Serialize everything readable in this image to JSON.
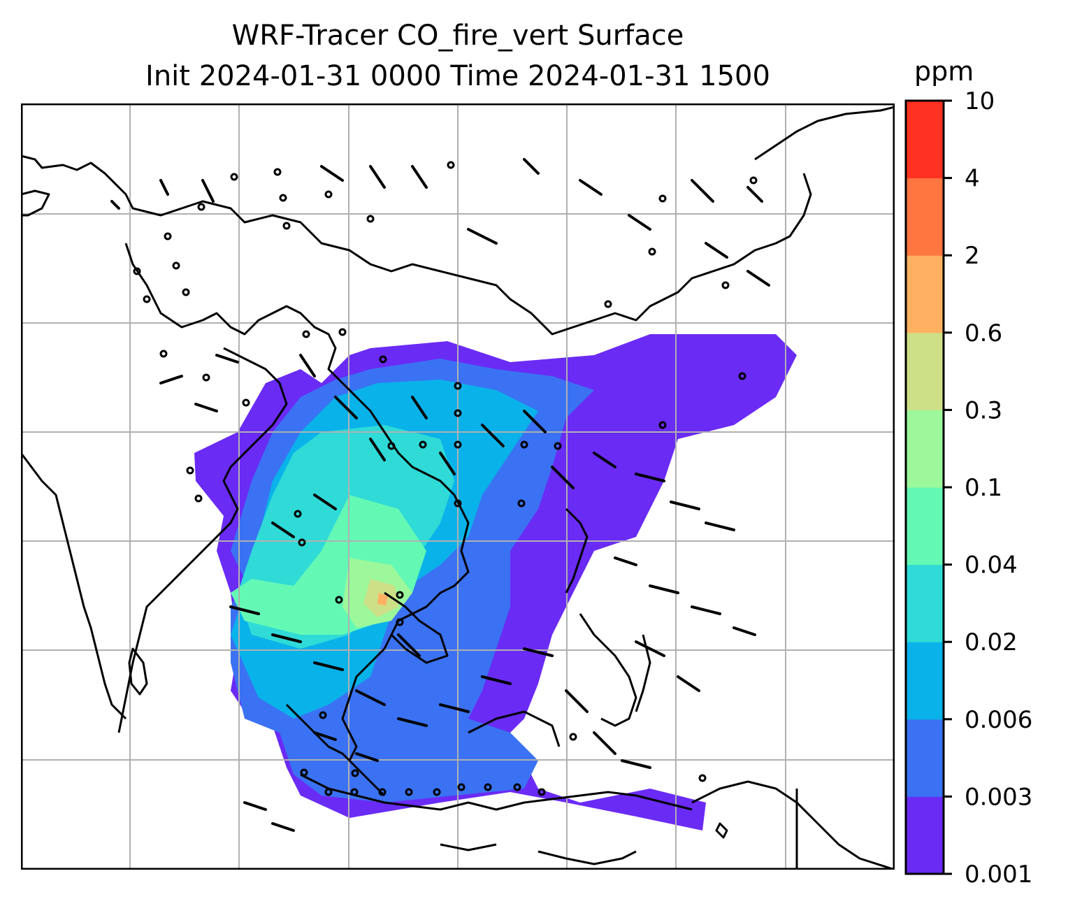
{
  "title": {
    "line1": "WRF-Tracer CO_fire_vert Surface",
    "line2": "Init 2024-01-31 0000 Time 2024-01-31 1500"
  },
  "colorbar": {
    "unit": "ppm",
    "ticks": [
      "0.001",
      "0.003",
      "0.006",
      "0.02",
      "0.04",
      "0.1",
      "0.3",
      "0.6",
      "2",
      "4",
      "10"
    ],
    "colors": [
      "#6a2bf5",
      "#3a72f3",
      "#0ab2ea",
      "#2fdad7",
      "#63f9b5",
      "#9cf89b",
      "#cde087",
      "#ffb161",
      "#ff7640",
      "#ff3222"
    ]
  },
  "map": {
    "grid": true,
    "features": [
      "coastlines",
      "country borders",
      "wind barbs",
      "tracer concentration fill"
    ]
  }
}
